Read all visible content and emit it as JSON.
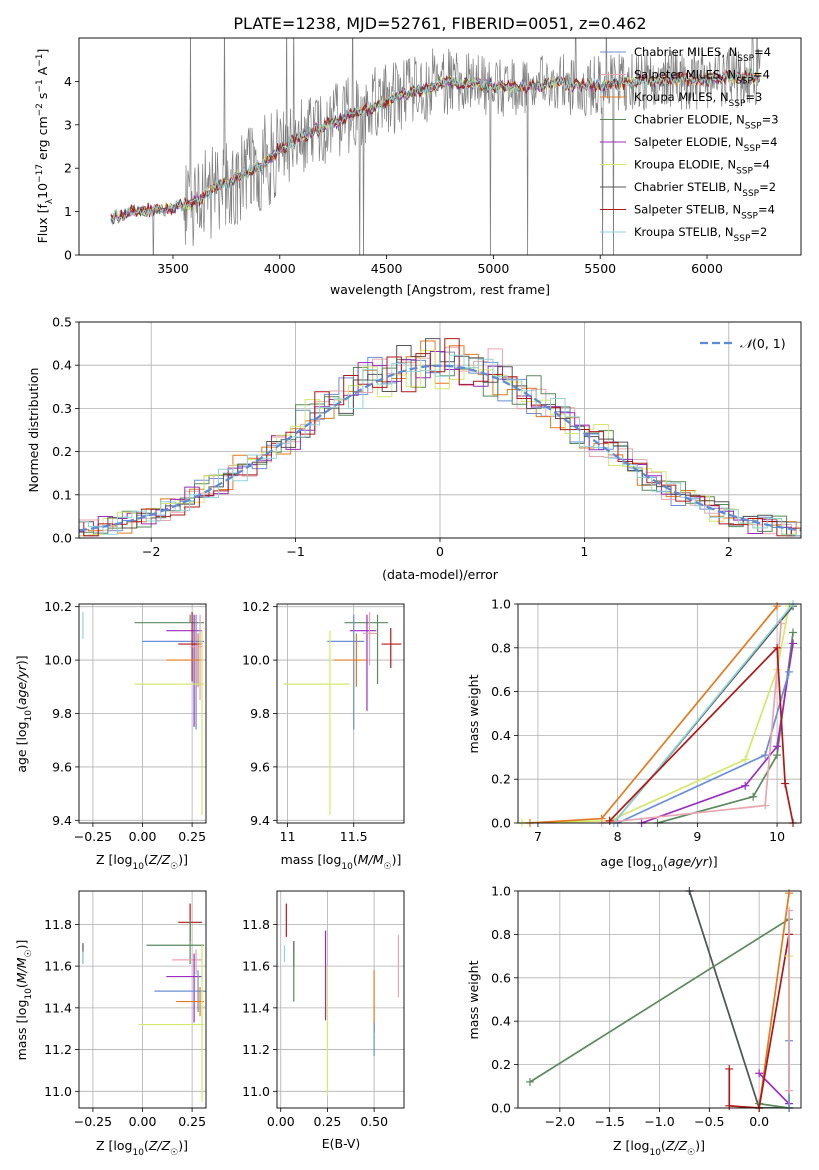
{
  "colors": {
    "chabrier_miles": "#6a8fd6",
    "salpeter_miles": "#e8a6b0",
    "kroupa_miles": "#e07b1f",
    "chabrier_elodie": "#5a8a5e",
    "salpeter_elodie": "#9a2dbf",
    "kroupa_elodie": "#d4e86b",
    "chabrier_stelib": "#555555",
    "salpeter_stelib": "#b01818",
    "kroupa_stelib": "#8fd4d8",
    "normal_curve": "#5b8ad6",
    "spectrum_data": "#7f7f7f"
  },
  "chart_data": [
    {
      "id": "spectrum",
      "type": "line",
      "title": "PLATE=1238, MJD=52761, FIBERID=0051, z=0.462",
      "xlabel": "wavelength [Angstrom, rest frame]",
      "ylabel": "Flux [f_λ10^-17 erg cm^-2 s^-1 A^-1]",
      "xlim": [
        3060,
        6440
      ],
      "ylim": [
        0,
        5
      ],
      "xticks": [
        3500,
        4000,
        4500,
        5000,
        5500,
        6000
      ],
      "yticks": [
        0,
        1,
        2,
        3,
        4
      ],
      "grid": false,
      "legend_position": "top-right",
      "model_trend": [
        [
          3210,
          0.85
        ],
        [
          3300,
          1.0
        ],
        [
          3400,
          1.03
        ],
        [
          3500,
          1.08
        ],
        [
          3600,
          1.2
        ],
        [
          3700,
          1.55
        ],
        [
          3800,
          1.8
        ],
        [
          3900,
          2.0
        ],
        [
          4000,
          2.45
        ],
        [
          4100,
          2.7
        ],
        [
          4200,
          2.95
        ],
        [
          4300,
          3.15
        ],
        [
          4400,
          3.35
        ],
        [
          4500,
          3.55
        ],
        [
          4600,
          3.72
        ],
        [
          4700,
          3.85
        ],
        [
          4800,
          4.0
        ],
        [
          4900,
          3.95
        ],
        [
          5000,
          3.9
        ],
        [
          5100,
          3.85
        ],
        [
          5200,
          3.9
        ],
        [
          5300,
          3.95
        ],
        [
          5400,
          3.9
        ],
        [
          5500,
          3.9
        ],
        [
          5600,
          3.95
        ],
        [
          5700,
          4.0
        ],
        [
          5800,
          4.02
        ],
        [
          5900,
          4.05
        ],
        [
          6000,
          4.05
        ],
        [
          6100,
          4.08
        ],
        [
          6200,
          4.1
        ],
        [
          6250,
          4.1
        ]
      ],
      "series": [
        {
          "name": "Chabrier MILES, N_SSP=4",
          "color_key": "chabrier_miles"
        },
        {
          "name": "Salpeter MILES, N_SSP=4",
          "color_key": "salpeter_miles"
        },
        {
          "name": "Kroupa MILES, N_SSP=3",
          "color_key": "kroupa_miles"
        },
        {
          "name": "Chabrier ELODIE, N_SSP=3",
          "color_key": "chabrier_elodie"
        },
        {
          "name": "Salpeter ELODIE, N_SSP=4",
          "color_key": "salpeter_elodie"
        },
        {
          "name": "Kroupa ELODIE, N_SSP=4",
          "color_key": "kroupa_elodie"
        },
        {
          "name": "Chabrier STELIB, N_SSP=2",
          "color_key": "chabrier_stelib"
        },
        {
          "name": "Salpeter STELIB, N_SSP=4",
          "color_key": "salpeter_stelib"
        },
        {
          "name": "Kroupa STELIB, N_SSP=2",
          "color_key": "kroupa_stelib"
        }
      ]
    },
    {
      "id": "residuals",
      "type": "line",
      "xlabel": "(data-model)/error",
      "ylabel": "Normed distribution",
      "xlim": [
        -2.5,
        2.5
      ],
      "ylim": [
        0,
        0.5
      ],
      "xticks": [
        -2,
        -1,
        0,
        1,
        2
      ],
      "yticks": [
        0.0,
        0.1,
        0.2,
        0.3,
        0.4,
        0.5
      ],
      "grid": true,
      "legend_position": "top-right",
      "legend": "N(0,1)"
    },
    {
      "id": "age_vs_Z",
      "type": "scatter",
      "xlabel": "Z [log10(Z/Z☉)]",
      "ylabel": "age  [log10(age/yr)]",
      "xlim": [
        -0.32,
        0.32
      ],
      "ylim": [
        9.39,
        10.21
      ],
      "xticks": [
        -0.25,
        0.0,
        0.25
      ],
      "xtick_labels": [
        "−0.25",
        "0.00",
        "0.25"
      ],
      "yticks": [
        9.4,
        9.6,
        9.8,
        10.0,
        10.2
      ],
      "grid": true,
      "points": [
        {
          "s": "kroupa_stelib",
          "x": -0.3,
          "xerr": [
            0,
            0
          ],
          "y": 10.13,
          "yerr": [
            0.05,
            0.05
          ]
        },
        {
          "s": "chabrier_elodie",
          "x": 0.24,
          "xerr": [
            0.28,
            0.07
          ],
          "y": 10.14,
          "yerr": [
            0.0,
            0.03
          ]
        },
        {
          "s": "salpeter_elodie",
          "x": 0.26,
          "xerr": [
            0.14,
            0.04
          ],
          "y": 10.11,
          "yerr": [
            0.36,
            0.06
          ]
        },
        {
          "s": "chabrier_miles",
          "x": 0.27,
          "xerr": [
            0.27,
            0.04
          ],
          "y": 10.07,
          "yerr": [
            0.33,
            0.1
          ]
        },
        {
          "s": "salpeter_stelib",
          "x": 0.25,
          "xerr": [
            0.07,
            0.05
          ],
          "y": 10.06,
          "yerr": [
            0.14,
            0.12
          ]
        },
        {
          "s": "kroupa_miles",
          "x": 0.28,
          "xerr": [
            0.16,
            0.02
          ],
          "y": 10.0,
          "yerr": [
            0.1,
            0.1
          ]
        },
        {
          "s": "kroupa_elodie",
          "x": 0.3,
          "xerr": [
            0.34,
            0.01
          ],
          "y": 9.91,
          "yerr": [
            0.49,
            0.2
          ]
        },
        {
          "s": "salpeter_miles",
          "x": 0.29,
          "xerr": [
            0.05,
            0.01
          ],
          "y": 10.05,
          "yerr": [
            0.2,
            0.12
          ]
        }
      ]
    },
    {
      "id": "age_vs_mass",
      "type": "scatter",
      "xlabel": "mass [log10(M/M☉)]",
      "xlim": [
        10.92,
        11.88
      ],
      "ylim": [
        9.39,
        10.21
      ],
      "xticks": [
        11.0,
        11.5
      ],
      "yticks": [
        9.4,
        9.6,
        9.8,
        10.0,
        10.2
      ],
      "grid": true,
      "points": [
        {
          "s": "chabrier_elodie",
          "x": 11.68,
          "xerr": [
            0.25,
            0.08
          ],
          "y": 10.14,
          "yerr": [
            0.23,
            0.03
          ]
        },
        {
          "s": "salpeter_elodie",
          "x": 11.6,
          "xerr": [
            0.13,
            0.07
          ],
          "y": 10.11,
          "yerr": [
            0.3,
            0.06
          ]
        },
        {
          "s": "chabrier_miles",
          "x": 11.5,
          "xerr": [
            0.2,
            0.08
          ],
          "y": 10.07,
          "yerr": [
            0.33,
            0.1
          ]
        },
        {
          "s": "salpeter_stelib",
          "x": 11.78,
          "xerr": [
            0.07,
            0.08
          ],
          "y": 10.06,
          "yerr": [
            0.09,
            0.06
          ]
        },
        {
          "s": "kroupa_miles",
          "x": 11.52,
          "xerr": [
            0.17,
            0.08
          ],
          "y": 10.0,
          "yerr": [
            0.1,
            0.1
          ]
        },
        {
          "s": "kroupa_elodie",
          "x": 11.32,
          "xerr": [
            0.35,
            0.15
          ],
          "y": 9.91,
          "yerr": [
            0.49,
            0.2
          ]
        },
        {
          "s": "salpeter_miles",
          "x": 11.62,
          "xerr": [
            0.05,
            0.06
          ],
          "y": 10.1,
          "yerr": [
            0.12,
            0.08
          ]
        }
      ]
    },
    {
      "id": "mass_weight_vs_age",
      "type": "line",
      "xlabel": "age  [log10(age/yr)]",
      "ylabel": "mass weight",
      "xlim": [
        6.75,
        10.3
      ],
      "ylim": [
        0,
        1
      ],
      "xticks": [
        7,
        8,
        9,
        10
      ],
      "yticks": [
        0.0,
        0.2,
        0.4,
        0.6,
        0.8,
        1.0
      ],
      "grid": true,
      "series": [
        {
          "s": "kroupa_elodie",
          "x": [
            6.8,
            7.9,
            9.6,
            10.0,
            10.15
          ],
          "y": [
            0.0,
            0.01,
            0.29,
            0.7,
            0.99
          ]
        },
        {
          "s": "kroupa_miles",
          "x": [
            6.9,
            7.8,
            10.0
          ],
          "y": [
            0.0,
            0.02,
            0.99
          ]
        },
        {
          "s": "chabrier_stelib",
          "x": [
            7.95,
            10.2
          ],
          "y": [
            0.0,
            0.99
          ]
        },
        {
          "s": "kroupa_stelib",
          "x": [
            7.95,
            10.2
          ],
          "y": [
            0.0,
            1.0
          ]
        },
        {
          "s": "chabrier_elodie",
          "x": [
            8.5,
            9.7,
            10.0,
            10.2
          ],
          "y": [
            0.0,
            0.12,
            0.31,
            0.87
          ]
        },
        {
          "s": "salpeter_elodie",
          "x": [
            8.3,
            9.6,
            10.0,
            10.2
          ],
          "y": [
            0.0,
            0.17,
            0.35,
            0.82
          ]
        },
        {
          "s": "chabrier_miles",
          "x": [
            8.0,
            9.85,
            10.15
          ],
          "y": [
            0.0,
            0.31,
            0.69
          ]
        },
        {
          "s": "salpeter_miles",
          "x": [
            7.8,
            9.85,
            10.05
          ],
          "y": [
            0.0,
            0.08,
            0.91
          ]
        },
        {
          "s": "salpeter_stelib",
          "x": [
            7.9,
            10.0,
            10.1,
            10.2
          ],
          "y": [
            0.01,
            0.8,
            0.18,
            0.0
          ]
        }
      ]
    },
    {
      "id": "mass_vs_Z",
      "type": "scatter",
      "xlabel": "Z [log10(Z/Z☉)]",
      "ylabel": "mass [log10(M/M☉)]",
      "xlim": [
        -0.32,
        0.32
      ],
      "ylim": [
        10.92,
        11.96
      ],
      "xticks": [
        -0.25,
        0.0,
        0.25
      ],
      "xtick_labels": [
        "−0.25",
        "0.00",
        "0.25"
      ],
      "yticks": [
        11.0,
        11.2,
        11.4,
        11.6,
        11.8
      ],
      "grid": true,
      "points": [
        {
          "s": "chabrier_stelib",
          "x": -0.3,
          "xerr": [
            0,
            0
          ],
          "y": 11.66,
          "yerr": [
            0.05,
            0.05
          ]
        },
        {
          "s": "kroupa_stelib",
          "x": -0.3,
          "xerr": [
            0,
            0
          ],
          "y": 11.64,
          "yerr": [
            0.03,
            0.03
          ]
        },
        {
          "s": "salpeter_stelib",
          "x": 0.24,
          "xerr": [
            0.06,
            0.06
          ],
          "y": 11.81,
          "yerr": [
            0.09,
            0.09
          ]
        },
        {
          "s": "chabrier_elodie",
          "x": 0.24,
          "xerr": [
            0.22,
            0.07
          ],
          "y": 11.7,
          "yerr": [
            0.09,
            0.12
          ]
        },
        {
          "s": "salpeter_miles",
          "x": 0.27,
          "xerr": [
            0.12,
            0.03
          ],
          "y": 11.63,
          "yerr": [
            0.07,
            0.05
          ]
        },
        {
          "s": "salpeter_elodie",
          "x": 0.26,
          "xerr": [
            0.14,
            0.04
          ],
          "y": 11.55,
          "yerr": [
            0.22,
            0.11
          ]
        },
        {
          "s": "chabrier_miles",
          "x": 0.28,
          "xerr": [
            0.22,
            0.04
          ],
          "y": 11.48,
          "yerr": [
            0.1,
            0.1
          ]
        },
        {
          "s": "kroupa_miles",
          "x": 0.29,
          "xerr": [
            0.12,
            0.02
          ],
          "y": 11.43,
          "yerr": [
            0.07,
            0.07
          ]
        },
        {
          "s": "kroupa_elodie",
          "x": 0.3,
          "xerr": [
            0.32,
            0.01
          ],
          "y": 11.32,
          "yerr": [
            0.37,
            0.38
          ]
        }
      ]
    },
    {
      "id": "mass_vs_ebv",
      "type": "scatter",
      "xlabel": "E(B-V)",
      "xlim": [
        -0.02,
        0.66
      ],
      "ylim": [
        10.92,
        11.96
      ],
      "xticks": [
        0.0,
        0.25,
        0.5
      ],
      "xtick_labels": [
        "0.00",
        "0.25",
        "0.50"
      ],
      "yticks": [
        11.0,
        11.2,
        11.4,
        11.6,
        11.8
      ],
      "grid": true,
      "points": [
        {
          "s": "salpeter_stelib",
          "x": 0.03,
          "xerr": [
            0,
            0
          ],
          "y": 11.82,
          "yerr": [
            0.08,
            0.08
          ]
        },
        {
          "s": "kroupa_stelib",
          "x": 0.02,
          "xerr": [
            0,
            0
          ],
          "y": 11.66,
          "yerr": [
            0.04,
            0.04
          ]
        },
        {
          "s": "chabrier_stelib",
          "x": 0.07,
          "xerr": [
            0,
            0
          ],
          "y": 11.66,
          "yerr": [
            0.06,
            0.06
          ]
        },
        {
          "s": "chabrier_elodie",
          "x": 0.07,
          "xerr": [
            0,
            0
          ],
          "y": 11.55,
          "yerr": [
            0.12,
            0.12
          ]
        },
        {
          "s": "salpeter_elodie",
          "x": 0.24,
          "xerr": [
            0,
            0
          ],
          "y": 11.55,
          "yerr": [
            0.21,
            0.22
          ]
        },
        {
          "s": "kroupa_elodie",
          "x": 0.25,
          "xerr": [
            0,
            0
          ],
          "y": 11.3,
          "yerr": [
            0.32,
            0.3
          ]
        },
        {
          "s": "kroupa_miles",
          "x": 0.5,
          "xerr": [
            0,
            0
          ],
          "y": 11.43,
          "yerr": [
            0.15,
            0.15
          ]
        },
        {
          "s": "chabrier_miles",
          "x": 0.5,
          "xerr": [
            0,
            0
          ],
          "y": 11.25,
          "yerr": [
            0.08,
            0.08
          ]
        },
        {
          "s": "salpeter_miles",
          "x": 0.63,
          "xerr": [
            0,
            0
          ],
          "y": 11.6,
          "yerr": [
            0.15,
            0.15
          ]
        }
      ]
    },
    {
      "id": "mass_weight_vs_Z",
      "type": "line",
      "xlabel": "Z [log10(Z/Z☉)]",
      "ylabel": "mass weight",
      "xlim": [
        -2.42,
        0.42
      ],
      "ylim": [
        0,
        1
      ],
      "xticks": [
        -2.0,
        -1.5,
        -1.0,
        -0.5,
        0.0
      ],
      "xtick_labels": [
        "−2.0",
        "−1.5",
        "−1.0",
        "−0.5",
        "0.0"
      ],
      "yticks": [
        0.0,
        0.2,
        0.4,
        0.6,
        0.8,
        1.0
      ],
      "grid": true,
      "series": [
        {
          "s": "kroupa_stelib",
          "x": [
            -0.7,
            0.0,
            0.3
          ],
          "y": [
            1.0,
            0.0,
            0.0
          ]
        },
        {
          "s": "chabrier_stelib",
          "x": [
            -0.7,
            0.0,
            0.3
          ],
          "y": [
            1.0,
            0.0,
            0.0
          ]
        },
        {
          "s": "chabrier_elodie",
          "x": [
            -2.3,
            0.3,
            0.3,
            0.0
          ],
          "y": [
            0.12,
            0.87,
            0.0,
            0.02
          ]
        },
        {
          "s": "kroupa_miles",
          "x": [
            0.0,
            0.3
          ],
          "y": [
            0.0,
            0.99
          ]
        },
        {
          "s": "salpeter_elodie",
          "x": [
            0.0,
            0.3
          ],
          "y": [
            0.16,
            0.02
          ]
        },
        {
          "s": "salpeter_stelib",
          "x": [
            -0.3,
            -0.3,
            0.0,
            0.3
          ],
          "y": [
            0.18,
            0.01,
            0.0,
            0.8
          ]
        },
        {
          "s": "kroupa_elodie",
          "x": [
            0.3,
            0.3
          ],
          "y": [
            0.0,
            0.7
          ]
        },
        {
          "s": "chabrier_miles",
          "x": [
            0.3,
            0.3
          ],
          "y": [
            0.0,
            0.31
          ]
        },
        {
          "s": "salpeter_miles",
          "x": [
            0.3,
            0.3
          ],
          "y": [
            0.08,
            0.91
          ]
        }
      ]
    }
  ]
}
